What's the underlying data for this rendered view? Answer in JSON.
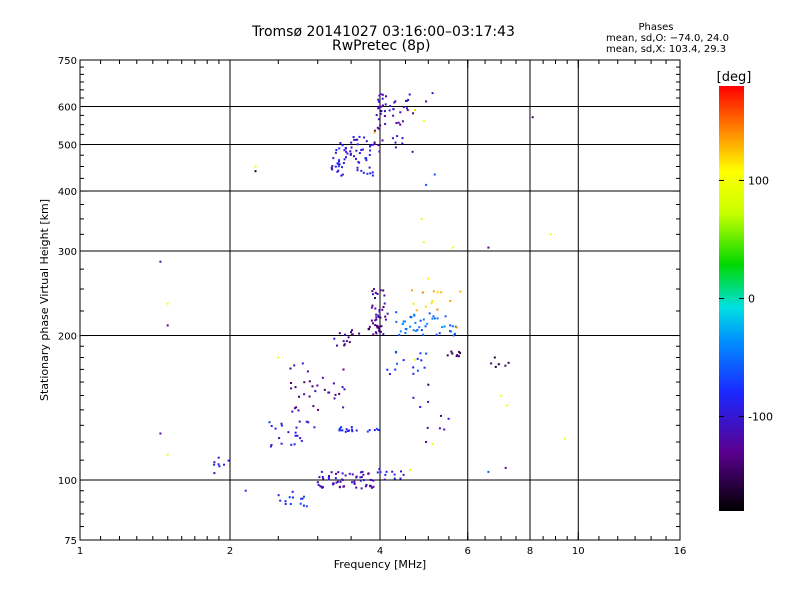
{
  "chart_data": {
    "type": "scatter",
    "title": "Tromsø 20141027 03:16:00–03:17:43",
    "subtitle": "RwPretec (8p)",
    "xlabel": "Frequency [MHz]",
    "ylabel": "Stationary phase Virtual Height [km]",
    "x_scale": "log",
    "y_scale": "log",
    "xlim": [
      1,
      16
    ],
    "ylim": [
      75,
      750
    ],
    "x_ticks": [
      1,
      2,
      4,
      6,
      8,
      10,
      16
    ],
    "y_ticks": [
      75,
      100,
      200,
      300,
      400,
      500,
      600,
      750
    ],
    "grid": true,
    "phase_stats": {
      "heading": "Phases",
      "o_line": "mean, sd,O: −74.0, 24.0",
      "x_line": "mean, sd,X: 103.4, 29.3"
    },
    "colorbar": {
      "label": "[deg]",
      "range": [
        -180,
        180
      ],
      "ticks": [
        100,
        0,
        -100
      ]
    },
    "clusters": [
      {
        "x": [
          3.2,
          3.9
        ],
        "y": [
          430,
          520
        ],
        "phase": -95,
        "n": 70
      },
      {
        "x": [
          3.9,
          4.7
        ],
        "y": [
          480,
          640
        ],
        "phase": -115,
        "n": 55
      },
      {
        "x": [
          3.85,
          4.15
        ],
        "y": [
          200,
          250
        ],
        "phase": -125,
        "n": 40
      },
      {
        "x": [
          4.3,
          5.7
        ],
        "y": [
          200,
          225
        ],
        "phase": -55,
        "n": 45
      },
      {
        "x": [
          4.6,
          5.6
        ],
        "y": [
          225,
          250
        ],
        "phase": 135,
        "n": 12
      },
      {
        "x": [
          3.0,
          3.9
        ],
        "y": [
          96,
          104
        ],
        "phase": -115,
        "n": 60
      },
      {
        "x": [
          3.9,
          4.5
        ],
        "y": [
          100,
          106
        ],
        "phase": -95,
        "n": 12
      },
      {
        "x": [
          2.4,
          3.0
        ],
        "y": [
          117,
          133
        ],
        "phase": -95,
        "n": 22
      },
      {
        "x": [
          2.6,
          3.4
        ],
        "y": [
          138,
          175
        ],
        "phase": -125,
        "n": 32
      },
      {
        "x": [
          3.3,
          4.0
        ],
        "y": [
          126,
          129
        ],
        "phase": -85,
        "n": 20
      },
      {
        "x": [
          4.1,
          5.0
        ],
        "y": [
          165,
          185
        ],
        "phase": -75,
        "n": 15
      },
      {
        "x": [
          5.4,
          5.8
        ],
        "y": [
          180,
          186
        ],
        "phase": -150,
        "n": 8
      },
      {
        "x": [
          6.5,
          7.3
        ],
        "y": [
          172,
          180
        ],
        "phase": -155,
        "n": 5
      },
      {
        "x": [
          2.5,
          2.9
        ],
        "y": [
          88,
          95
        ],
        "phase": -80,
        "n": 14
      },
      {
        "x": [
          1.85,
          2.0
        ],
        "y": [
          103,
          112
        ],
        "phase": -95,
        "n": 8
      },
      {
        "x": [
          3.2,
          3.6
        ],
        "y": [
          190,
          206
        ],
        "phase": -125,
        "n": 12
      },
      {
        "x": [
          3.5,
          4.1
        ],
        "y": [
          200,
          210
        ],
        "phase": -140,
        "n": 10
      },
      {
        "x": [
          4.6,
          5.6
        ],
        "y": [
          125,
          150
        ],
        "phase": -115,
        "n": 8
      }
    ],
    "points": [
      {
        "x": 1.45,
        "y": 285,
        "phase": -110
      },
      {
        "x": 1.5,
        "y": 233,
        "phase": 100
      },
      {
        "x": 1.5,
        "y": 210,
        "phase": -130
      },
      {
        "x": 1.45,
        "y": 125,
        "phase": -120
      },
      {
        "x": 1.5,
        "y": 113,
        "phase": 100
      },
      {
        "x": 2.25,
        "y": 440,
        "phase": -170
      },
      {
        "x": 2.25,
        "y": 450,
        "phase": 110
      },
      {
        "x": 8.1,
        "y": 570,
        "phase": -140
      },
      {
        "x": 4.85,
        "y": 350,
        "phase": 100
      },
      {
        "x": 4.9,
        "y": 313,
        "phase": 100
      },
      {
        "x": 5.6,
        "y": 305,
        "phase": 100
      },
      {
        "x": 6.6,
        "y": 305,
        "phase": -130
      },
      {
        "x": 8.8,
        "y": 325,
        "phase": 110
      },
      {
        "x": 5.15,
        "y": 433,
        "phase": -60
      },
      {
        "x": 4.95,
        "y": 412,
        "phase": -60
      },
      {
        "x": 5.0,
        "y": 263,
        "phase": 110
      },
      {
        "x": 9.4,
        "y": 122,
        "phase": 100
      },
      {
        "x": 7.15,
        "y": 106,
        "phase": -130
      },
      {
        "x": 6.6,
        "y": 104,
        "phase": -60
      },
      {
        "x": 7.0,
        "y": 150,
        "phase": 100
      },
      {
        "x": 7.2,
        "y": 143,
        "phase": 110
      },
      {
        "x": 4.95,
        "y": 120,
        "phase": -130
      },
      {
        "x": 5.1,
        "y": 119,
        "phase": 100
      },
      {
        "x": 2.15,
        "y": 95,
        "phase": -80
      },
      {
        "x": 2.5,
        "y": 180,
        "phase": 110
      },
      {
        "x": 2.8,
        "y": 175,
        "phase": -100
      },
      {
        "x": 4.6,
        "y": 105,
        "phase": 100
      },
      {
        "x": 6.8,
        "y": 180,
        "phase": -160
      },
      {
        "x": 5.8,
        "y": 247,
        "phase": 130
      },
      {
        "x": 5.7,
        "y": 208,
        "phase": 140
      },
      {
        "x": 4.7,
        "y": 590,
        "phase": 120
      },
      {
        "x": 4.9,
        "y": 560,
        "phase": 100
      },
      {
        "x": 4.95,
        "y": 615,
        "phase": -130
      },
      {
        "x": 5.1,
        "y": 640,
        "phase": -110
      },
      {
        "x": 3.9,
        "y": 530,
        "phase": 130
      },
      {
        "x": 4.7,
        "y": 178,
        "phase": 100
      },
      {
        "x": 5.0,
        "y": 158,
        "phase": -150
      }
    ]
  }
}
